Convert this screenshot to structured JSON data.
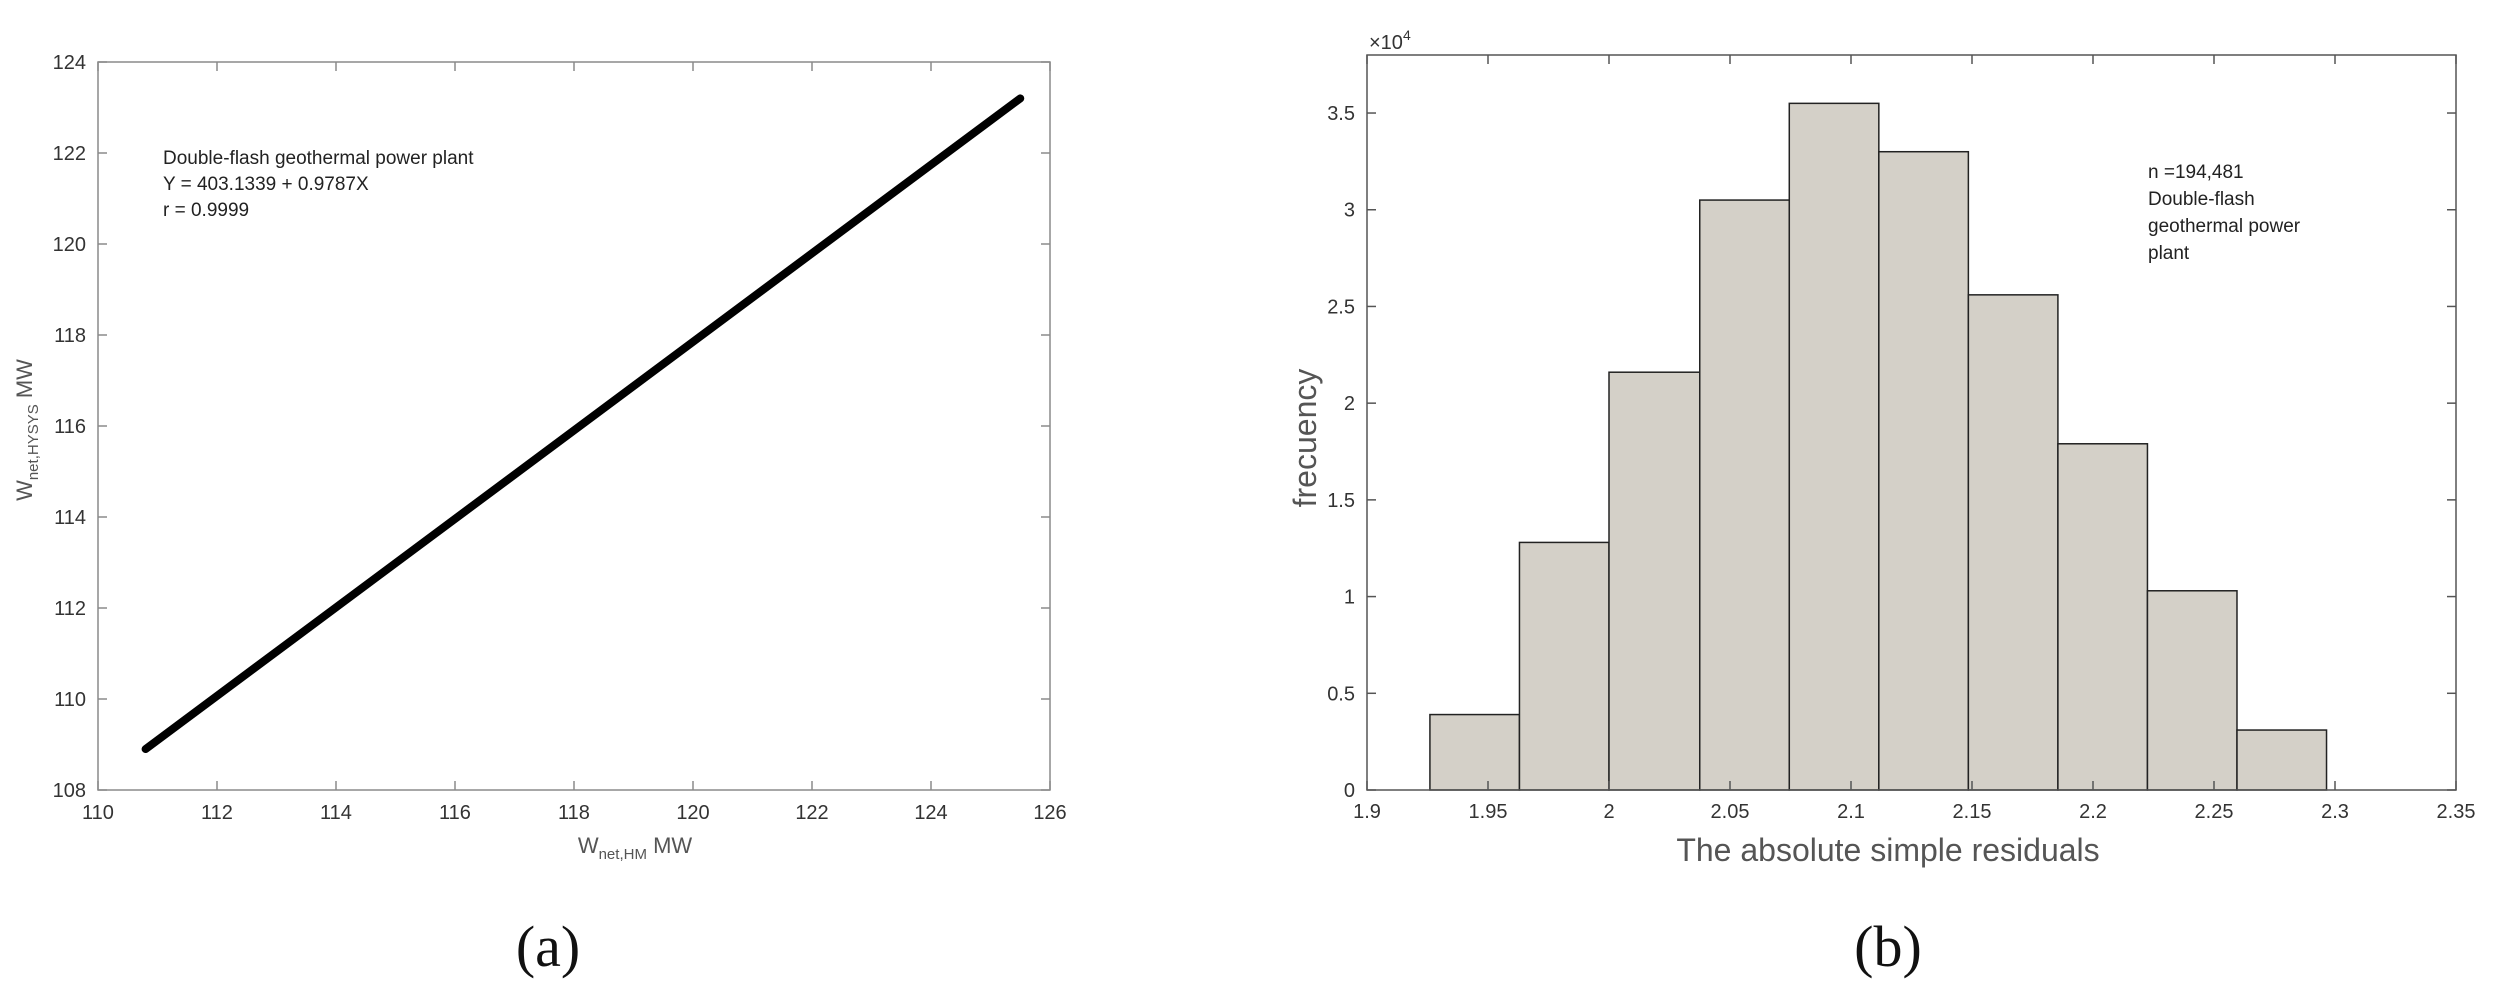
{
  "chart_data": [
    {
      "type": "line",
      "panel_label": "(a)",
      "xlabel_main": "W",
      "xlabel_sub": "net,HM",
      "xlabel_unit": " MW",
      "ylabel_main": "W",
      "ylabel_sub": "net,HYSYS",
      "ylabel_unit": " MW",
      "xlim": [
        110,
        126
      ],
      "ylim": [
        108,
        124
      ],
      "xticks": [
        110,
        112,
        114,
        116,
        118,
        120,
        122,
        124,
        126
      ],
      "yticks": [
        108,
        110,
        112,
        114,
        116,
        118,
        120,
        122,
        124
      ],
      "series": [
        {
          "x": [
            110.8,
            125.5
          ],
          "y": [
            108.9,
            123.2
          ]
        }
      ],
      "annotation": [
        "Double-flash geothermal power plant",
        "Y = 403.1339 + 0.9787X",
        "r = 0.9999"
      ]
    },
    {
      "type": "bar",
      "panel_label": "(b)",
      "xlabel": "The absolute simple residuals",
      "ylabel": "frecuency",
      "y_multiplier_base": "×10",
      "y_multiplier_exp": "4",
      "xlim": [
        1.9,
        2.35
      ],
      "ylim": [
        0,
        3.8
      ],
      "xticks": [
        "1.9",
        "1.95",
        "2",
        "2.05",
        "2.1",
        "2.15",
        "2.2",
        "2.25",
        "2.3",
        "2.35"
      ],
      "yticks": [
        "0",
        "0.5",
        "1",
        "1.5",
        "2",
        "2.5",
        "3",
        "3.5"
      ],
      "bin_edges": [
        1.926,
        1.963,
        2.0,
        2.0375,
        2.0745,
        2.1115,
        2.1485,
        2.1855,
        2.2225,
        2.2595,
        2.2965
      ],
      "values": [
        0.39,
        1.28,
        2.16,
        3.05,
        3.55,
        3.3,
        2.56,
        1.79,
        1.03,
        0.31
      ],
      "bar_color": "#d4d0c8",
      "annotation": [
        "n =194,481",
        "Double-flash",
        "geothermal power",
        "plant"
      ]
    }
  ]
}
